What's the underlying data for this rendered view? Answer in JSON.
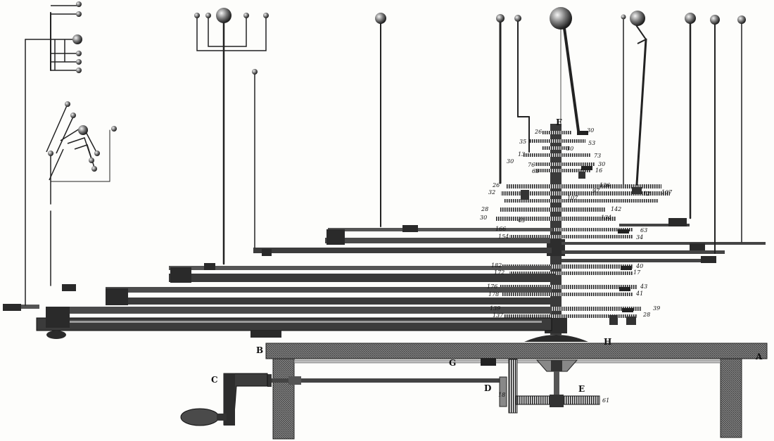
{
  "diagram": {
    "letter_labels": {
      "A": "A",
      "B": "B",
      "C": "C",
      "D": "D",
      "E": "E",
      "F": "F",
      "G": "G",
      "H": "H"
    },
    "gear_numbers": {
      "n26a": "26",
      "n30a": "30",
      "n35": "35",
      "n53": "53",
      "n30b": "30",
      "n13": "13",
      "n73": "73",
      "n30c": "30",
      "n76": "76",
      "n30d": "30",
      "n63a": "63",
      "n16": "16",
      "n26b": "26",
      "n126": "126",
      "n32": "32",
      "n97": "97",
      "n107a": "107",
      "n12": "12",
      "n107b": "107",
      "n28": "28",
      "n142": "142",
      "n30e": "30",
      "n43a": "43",
      "n134": "134",
      "n166": "166",
      "n63b": "63",
      "n154": "154",
      "n34": "34",
      "n182": "182",
      "n40": "40",
      "n172": "172",
      "n17": "17",
      "n176": "176",
      "n43b": "43",
      "n178": "178",
      "n41": "41",
      "n139": "139",
      "n39": "39",
      "n137": "137",
      "n28b": "28",
      "n18": "18",
      "n61": "61"
    },
    "colors": {
      "ink": "#1c1c1c",
      "mid": "#555555",
      "paper": "#fdfdfb"
    }
  }
}
